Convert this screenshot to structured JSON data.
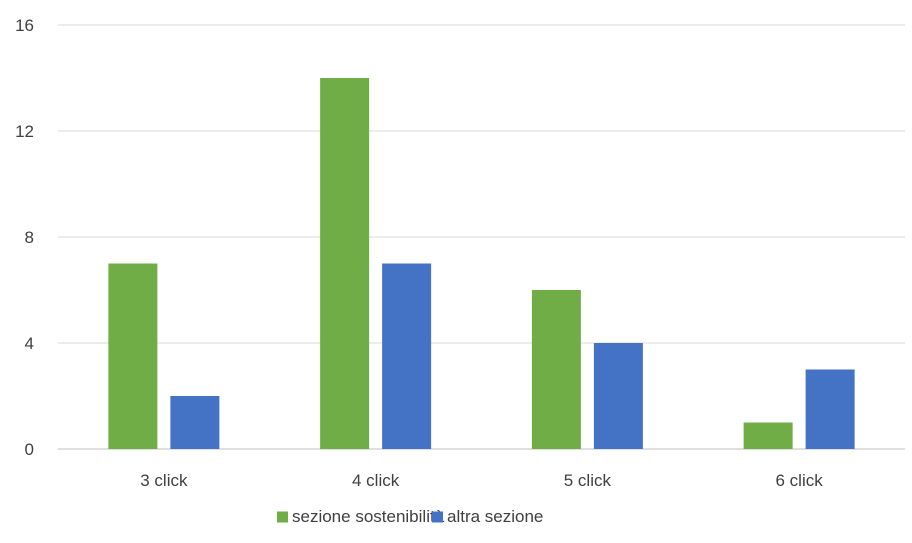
{
  "chart_data": {
    "type": "bar",
    "categories": [
      "3 click",
      "4 click",
      "5 click",
      "6 click"
    ],
    "series": [
      {
        "name": "sezione sostenibilità",
        "color": "#70ad47",
        "values": [
          7,
          14,
          6,
          1
        ]
      },
      {
        "name": "altra sezione",
        "color": "#4472c4",
        "values": [
          2,
          7,
          4,
          3
        ]
      }
    ],
    "ylim": [
      0,
      16
    ],
    "yticks": [
      0,
      4,
      8,
      12,
      16
    ],
    "grid": true,
    "legend_position": "bottom",
    "title": "",
    "xlabel": "",
    "ylabel": ""
  }
}
